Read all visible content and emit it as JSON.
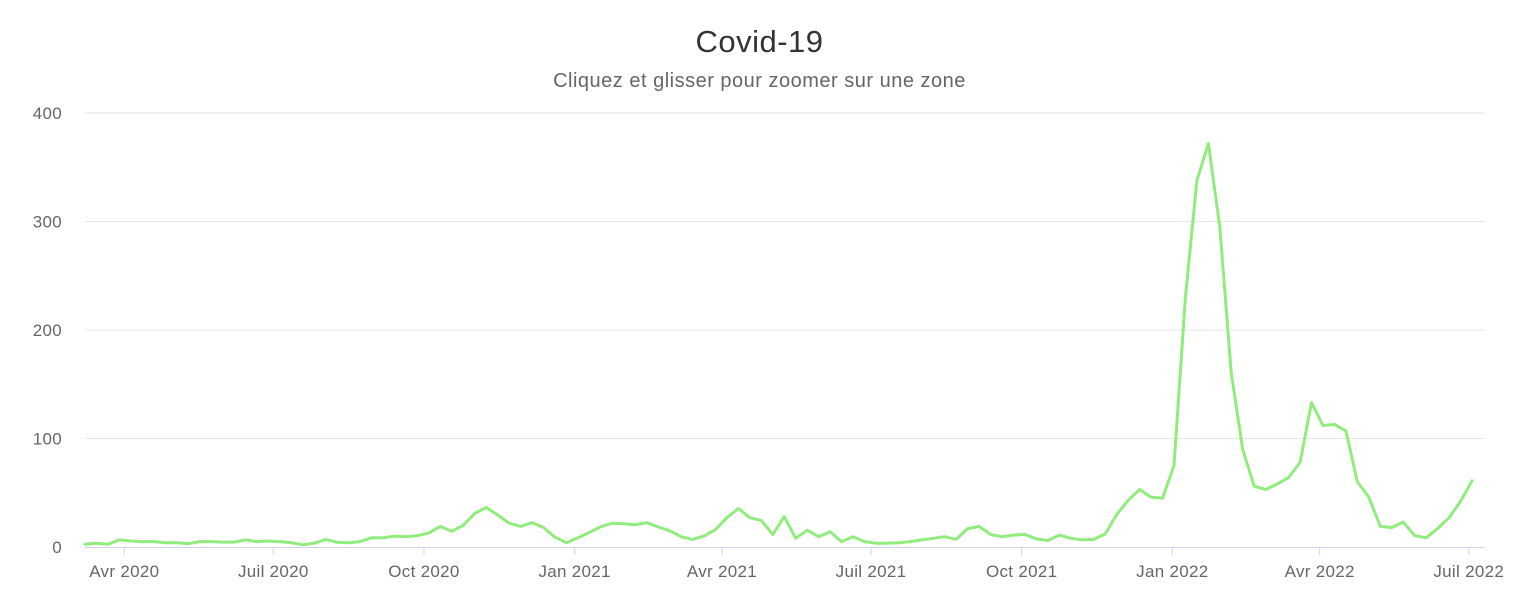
{
  "chart_data": {
    "type": "line",
    "title": "Covid-19",
    "subtitle": "Cliquez et glisser pour zoomer sur une zone",
    "xlabel": "",
    "ylabel": "",
    "ylim": [
      0,
      400
    ],
    "y_ticks": [
      0,
      100,
      200,
      300,
      400
    ],
    "grid": true,
    "legend": false,
    "x_ticks": [
      {
        "label": "Avr 2020",
        "date": "2020-04-01"
      },
      {
        "label": "Juil 2020",
        "date": "2020-07-01"
      },
      {
        "label": "Oct 2020",
        "date": "2020-10-01"
      },
      {
        "label": "Jan 2021",
        "date": "2021-01-01"
      },
      {
        "label": "Avr 2021",
        "date": "2021-04-01"
      },
      {
        "label": "Juil 2021",
        "date": "2021-07-01"
      },
      {
        "label": "Oct 2021",
        "date": "2021-10-01"
      },
      {
        "label": "Jan 2022",
        "date": "2022-01-01"
      },
      {
        "label": "Avr 2022",
        "date": "2022-04-01"
      },
      {
        "label": "Juil 2022",
        "date": "2022-07-01"
      }
    ],
    "series": [
      {
        "name": "Covid-19",
        "color": "#90ed7d",
        "start_date": "2020-03-08",
        "interval_days": 7,
        "values": [
          2.5,
          3.5,
          2.5,
          6.5,
          5.5,
          5,
          5,
          4,
          4,
          3,
          5,
          5,
          4.5,
          4.5,
          6.5,
          5,
          5.5,
          5,
          4,
          2,
          3.5,
          7,
          4.3,
          4,
          5,
          8.5,
          8.5,
          10,
          9.5,
          10.5,
          13,
          19,
          14.5,
          20,
          31,
          36.5,
          29.5,
          22,
          19,
          22.5,
          18,
          9,
          4,
          8.5,
          13.5,
          18.7,
          21.8,
          21.5,
          20.5,
          22.4,
          18.5,
          15,
          9.5,
          7,
          10,
          16,
          27,
          35.5,
          27,
          24.5,
          11.5,
          28,
          8,
          15.5,
          9.5,
          14,
          5,
          9.5,
          5,
          3.5,
          3.5,
          4,
          5,
          6.5,
          8,
          9.5,
          7,
          17,
          19,
          11.5,
          9.5,
          11,
          11.5,
          7.5,
          6,
          11,
          8,
          6.5,
          7,
          12,
          30,
          43,
          53,
          46,
          45,
          75,
          230,
          338,
          372,
          295,
          160,
          90,
          56,
          53,
          58,
          64,
          78,
          133,
          112,
          113,
          107,
          60,
          46,
          19,
          18,
          23,
          10.5,
          8.5,
          17,
          27,
          42,
          61
        ]
      }
    ],
    "colors": {
      "line": "#90ed7d",
      "axis": "#ccd6eb",
      "grid": "#e6e6e6",
      "axis_label": "#666666",
      "title": "#333333",
      "subtitle": "#666666",
      "background": "#ffffff"
    }
  }
}
